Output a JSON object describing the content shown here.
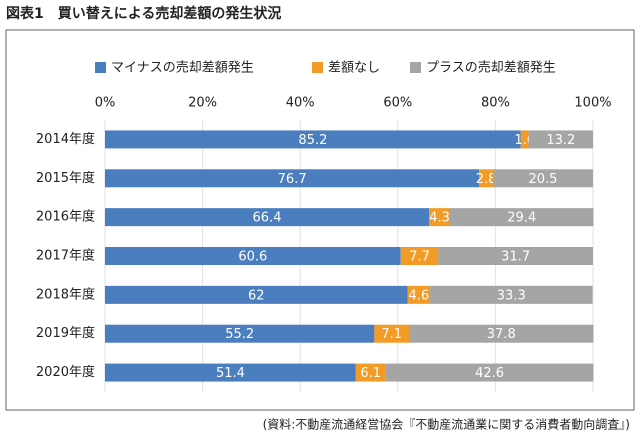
{
  "chart_data": {
    "type": "stacked-bar-horizontal",
    "title": "図表1　買い替えによる売却差額の発生状況",
    "source": "(資料:不動産流通経営協会『不動産流通業に関する消費者動向調査』)",
    "categories": [
      "2014年度",
      "2015年度",
      "2016年度",
      "2017年度",
      "2018年度",
      "2019年度",
      "2020年度"
    ],
    "series": [
      {
        "name": "マイナスの売却差額発生",
        "color": "#4a7ebf",
        "values": [
          85.2,
          76.7,
          66.4,
          60.6,
          62,
          55.2,
          51.4
        ]
      },
      {
        "name": "差額なし",
        "color": "#f29b26",
        "values": [
          1.6,
          2.8,
          4.3,
          7.7,
          4.6,
          7.1,
          6.1
        ]
      },
      {
        "name": "プラスの売却差額発生",
        "color": "#a5a5a5",
        "values": [
          13.2,
          20.5,
          29.4,
          31.7,
          33.3,
          37.8,
          42.6
        ]
      }
    ],
    "xlim": [
      0,
      100
    ],
    "xticks": [
      {
        "value": 0,
        "label": "0%"
      },
      {
        "value": 20,
        "label": "20%"
      },
      {
        "value": 40,
        "label": "40%"
      },
      {
        "value": 60,
        "label": "60%"
      },
      {
        "value": 80,
        "label": "80%"
      },
      {
        "value": 100,
        "label": "100%"
      }
    ],
    "grid": true,
    "legend": "top"
  }
}
